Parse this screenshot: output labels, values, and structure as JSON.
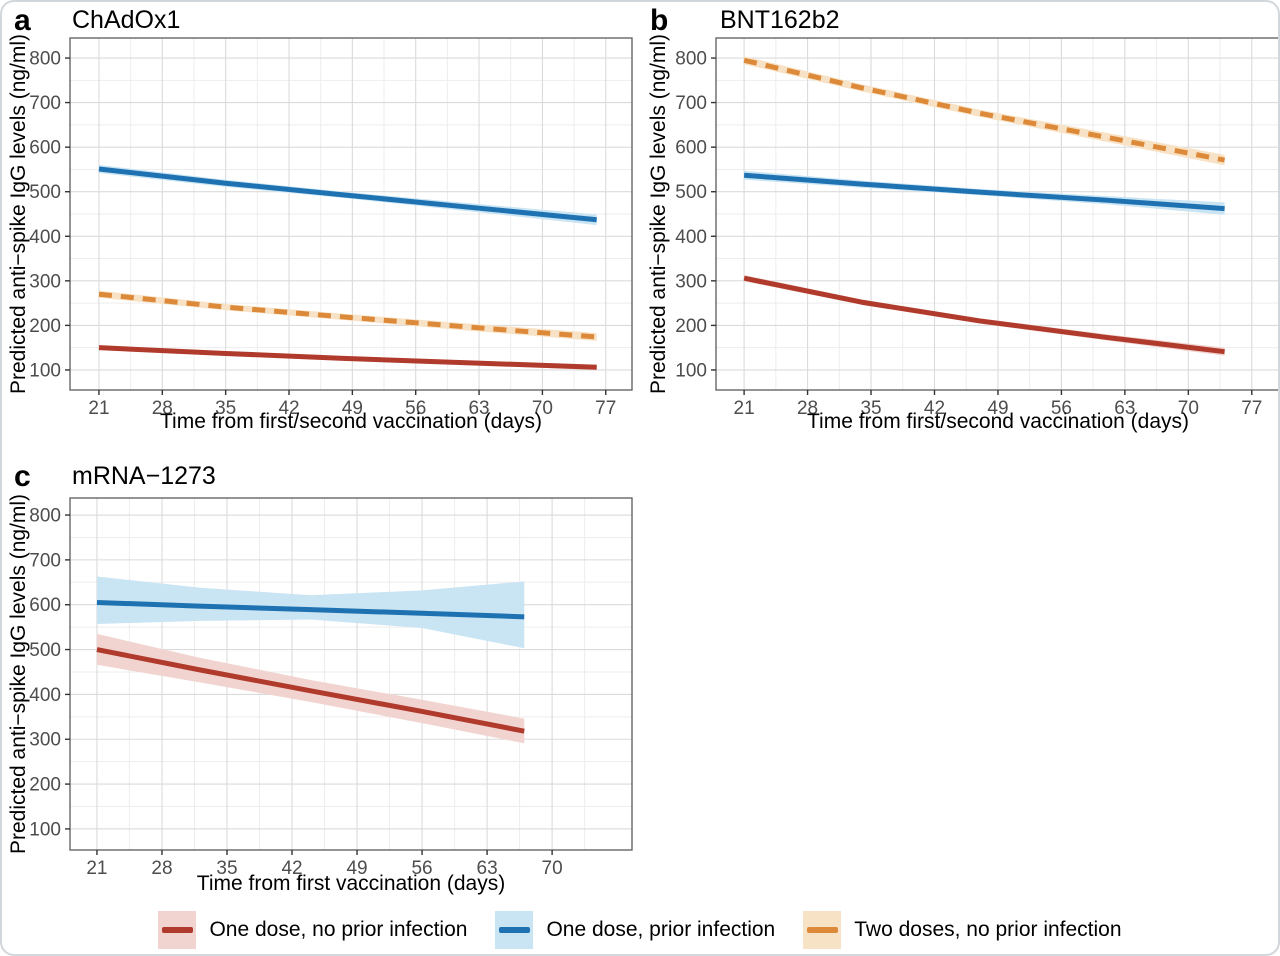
{
  "figure": {
    "legend_position": "bottom",
    "legend": [
      {
        "label": "One dose, no prior infection",
        "line_color": "#B03A2C",
        "fill_color": "#F1D4D0",
        "dashed": false
      },
      {
        "label": "One dose, prior infection",
        "line_color": "#1F72B2",
        "fill_color": "#C9E4F3",
        "dashed": false
      },
      {
        "label": "Two doses, no prior infection",
        "line_color": "#DC8A3A",
        "fill_color": "#F8E2C6",
        "dashed": true
      }
    ]
  },
  "chart_data": [
    {
      "type": "line",
      "panel": "a",
      "letter": "a",
      "title": "ChAdOx1",
      "xlabel": "Time from first/second vaccination (days)",
      "ylabel": "Predicted anti−spike IgG levels (ng/ml)",
      "xlim": [
        17.8,
        79.9
      ],
      "ylim": [
        55,
        845
      ],
      "xticks": [
        21,
        28,
        35,
        42,
        49,
        56,
        63,
        70,
        77
      ],
      "yticks": [
        100,
        200,
        300,
        400,
        500,
        600,
        700,
        800
      ],
      "grid": true,
      "series": [
        {
          "name": "One dose, no prior infection",
          "color": "#B03A2C",
          "fill": "#F1D4D0",
          "dashed": false,
          "x": [
            21,
            35,
            48,
            62,
            76
          ],
          "y": [
            150,
            137,
            126,
            116,
            106
          ],
          "ci_upper": [
            155,
            142,
            131,
            121,
            112
          ],
          "ci_lower": [
            145,
            132,
            121,
            111,
            100
          ]
        },
        {
          "name": "One dose, prior infection",
          "color": "#1F72B2",
          "fill": "#C9E4F3",
          "dashed": false,
          "x": [
            21,
            35,
            48,
            62,
            76
          ],
          "y": [
            551,
            519,
            493,
            465,
            437
          ],
          "ci_upper": [
            560,
            527,
            500,
            474,
            449
          ],
          "ci_lower": [
            542,
            511,
            486,
            456,
            425
          ]
        },
        {
          "name": "Two doses, no prior infection",
          "color": "#DC8A3A",
          "fill": "#F8E2C6",
          "dashed": true,
          "x": [
            21,
            35,
            48,
            62,
            76
          ],
          "y": [
            270,
            241,
            219,
            196,
            174
          ],
          "ci_upper": [
            278,
            248,
            226,
            204,
            183
          ],
          "ci_lower": [
            262,
            234,
            212,
            188,
            165
          ]
        }
      ]
    },
    {
      "type": "line",
      "panel": "b",
      "letter": "b",
      "title": "BNT162b2",
      "xlabel": "Time from first/second vaccination (days)",
      "ylabel": "Predicted anti−spike IgG levels (ng/ml)",
      "xlim": [
        17.9,
        80.0
      ],
      "ylim": [
        55,
        845
      ],
      "xticks": [
        21,
        28,
        35,
        42,
        49,
        56,
        63,
        70,
        77
      ],
      "yticks": [
        100,
        200,
        300,
        400,
        500,
        600,
        700,
        800
      ],
      "grid": true,
      "series": [
        {
          "name": "One dose, no prior infection",
          "color": "#B03A2C",
          "fill": "#F1D4D0",
          "dashed": false,
          "x": [
            21,
            34,
            47,
            61,
            74
          ],
          "y": [
            306,
            252,
            210,
            173,
            141
          ],
          "ci_upper": [
            313,
            258,
            216,
            180,
            150
          ],
          "ci_lower": [
            299,
            246,
            204,
            166,
            132
          ]
        },
        {
          "name": "One dose, prior infection",
          "color": "#1F72B2",
          "fill": "#C9E4F3",
          "dashed": false,
          "x": [
            21,
            34,
            47,
            61,
            74
          ],
          "y": [
            537,
            517,
            499,
            481,
            462
          ],
          "ci_upper": [
            547,
            525,
            506,
            490,
            476
          ],
          "ci_lower": [
            527,
            509,
            492,
            472,
            448
          ]
        },
        {
          "name": "Two doses, no prior infection",
          "color": "#DC8A3A",
          "fill": "#F8E2C6",
          "dashed": true,
          "x": [
            21,
            34,
            47,
            61,
            74
          ],
          "y": [
            795,
            733,
            676,
            622,
            571
          ],
          "ci_upper": [
            804,
            741,
            684,
            632,
            583
          ],
          "ci_lower": [
            786,
            725,
            668,
            612,
            559
          ]
        }
      ]
    },
    {
      "type": "line",
      "panel": "c",
      "letter": "c",
      "title": "mRNA−1273",
      "xlabel": "Time from first vaccination (days)",
      "ylabel": "Predicted anti−spike IgG levels (ng/ml)",
      "xlim": [
        18.1,
        78.6
      ],
      "ylim": [
        53,
        838
      ],
      "xticks": [
        21,
        28,
        35,
        42,
        49,
        56,
        63,
        70
      ],
      "yticks": [
        100,
        200,
        300,
        400,
        500,
        600,
        700,
        800
      ],
      "grid": true,
      "series": [
        {
          "name": "One dose, no prior infection",
          "color": "#B03A2C",
          "fill": "#F1D4D0",
          "dashed": false,
          "x": [
            21,
            32,
            44,
            56,
            67
          ],
          "y": [
            500,
            455,
            408,
            362,
            318
          ],
          "ci_upper": [
            535,
            482,
            432,
            388,
            346
          ],
          "ci_lower": [
            466,
            427,
            383,
            336,
            291
          ]
        },
        {
          "name": "One dose, prior infection",
          "color": "#1F72B2",
          "fill": "#C9E4F3",
          "dashed": false,
          "x": [
            21,
            32,
            44,
            56,
            67
          ],
          "y": [
            605,
            597,
            589,
            581,
            573
          ],
          "ci_upper": [
            663,
            638,
            621,
            632,
            652
          ],
          "ci_lower": [
            557,
            564,
            567,
            548,
            503
          ]
        }
      ]
    }
  ]
}
